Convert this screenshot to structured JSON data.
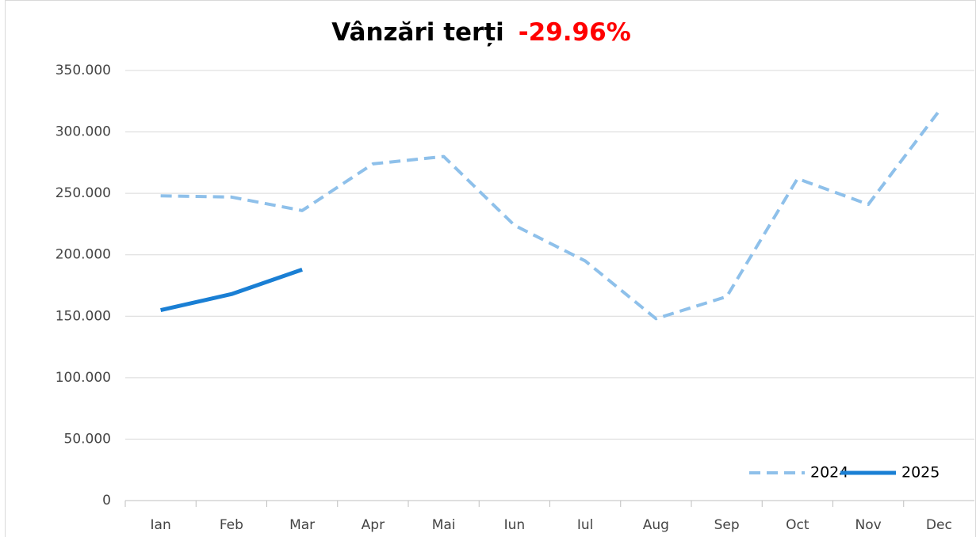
{
  "chart_data": {
    "type": "line",
    "title": "Vânzări terți",
    "title_change": "-29.96%",
    "title_change_color": "#ff0000",
    "categories": [
      "Ian",
      "Feb",
      "Mar",
      "Apr",
      "Mai",
      "Iun",
      "Iul",
      "Aug",
      "Sep",
      "Oct",
      "Nov",
      "Dec"
    ],
    "series": [
      {
        "name": "2024",
        "color": "#8ec0ea",
        "style": "dashed",
        "values": [
          248000,
          247000,
          236000,
          274000,
          280000,
          224000,
          195000,
          148000,
          166000,
          262000,
          241000,
          317000
        ]
      },
      {
        "name": "2025",
        "color": "#1a7fd4",
        "style": "solid",
        "values": [
          155000,
          168000,
          188000,
          null,
          null,
          null,
          null,
          null,
          null,
          null,
          null,
          null
        ]
      }
    ],
    "ylim": [
      0,
      350000
    ],
    "yticks": [
      0,
      {
        "value": 50000,
        "label": "50.000"
      },
      {
        "value": 100000,
        "label": "100.000"
      },
      {
        "value": 150000,
        "label": "150.000"
      },
      {
        "value": 200000,
        "label": "200.000"
      },
      {
        "value": 250000,
        "label": "250.000"
      },
      {
        "value": 300000,
        "label": "300.000"
      },
      {
        "value": 350000,
        "label": "350.000"
      }
    ],
    "grid": true,
    "legend": "bottom-right"
  }
}
